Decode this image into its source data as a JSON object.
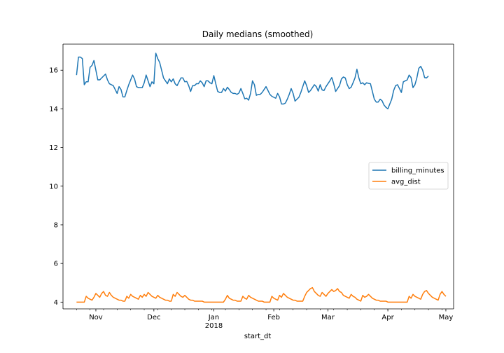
{
  "chart_data": {
    "type": "line",
    "title": "Daily medians (smoothed)",
    "xlabel": "start_dt",
    "ylabel": "",
    "x_start": "2017-10-22",
    "x_end": "2018-04-30",
    "xlim": [
      "2017-10-15",
      "2018-05-05"
    ],
    "ylim": [
      3.65,
      17.35
    ],
    "x_ticks": [
      {
        "date": "2017-11-01",
        "label": "Nov",
        "sublabel": ""
      },
      {
        "date": "2017-12-01",
        "label": "Dec",
        "sublabel": ""
      },
      {
        "date": "2018-01-01",
        "label": "Jan",
        "sublabel": "2018"
      },
      {
        "date": "2018-02-01",
        "label": "Feb",
        "sublabel": ""
      },
      {
        "date": "2018-03-01",
        "label": "Mar",
        "sublabel": ""
      },
      {
        "date": "2018-04-01",
        "label": "Apr",
        "sublabel": ""
      },
      {
        "date": "2018-05-01",
        "label": "May",
        "sublabel": ""
      }
    ],
    "y_ticks": [
      4,
      6,
      8,
      10,
      12,
      14,
      16
    ],
    "legend_position": "center-right",
    "series": [
      {
        "name": "billing_minutes",
        "color": "#1f77b4",
        "values": [
          15.75,
          16.68,
          16.68,
          16.6,
          15.25,
          15.4,
          15.4,
          16.15,
          16.25,
          16.5,
          16.0,
          15.5,
          15.5,
          15.6,
          15.7,
          15.8,
          15.5,
          15.3,
          15.25,
          15.2,
          15.0,
          14.8,
          15.15,
          15.0,
          14.62,
          14.62,
          14.95,
          15.25,
          15.5,
          15.75,
          15.55,
          15.15,
          15.1,
          15.1,
          15.1,
          15.35,
          15.75,
          15.45,
          15.15,
          15.4,
          15.3,
          16.88,
          16.6,
          16.4,
          16.0,
          15.6,
          15.45,
          15.3,
          15.55,
          15.4,
          15.55,
          15.3,
          15.2,
          15.4,
          15.6,
          15.6,
          15.4,
          15.42,
          15.2,
          14.9,
          15.2,
          15.2,
          15.3,
          15.3,
          15.45,
          15.35,
          15.15,
          15.45,
          15.45,
          15.35,
          15.3,
          15.72,
          15.3,
          14.9,
          14.85,
          14.85,
          15.05,
          14.92,
          15.12,
          15.0,
          14.85,
          14.8,
          14.8,
          14.75,
          14.82,
          15.05,
          14.8,
          14.52,
          14.55,
          14.45,
          14.8,
          15.45,
          15.25,
          14.7,
          14.75,
          14.75,
          14.85,
          15.0,
          15.15,
          14.95,
          14.75,
          14.65,
          14.6,
          14.55,
          14.8,
          14.62,
          14.25,
          14.25,
          14.3,
          14.5,
          14.75,
          15.05,
          14.8,
          14.4,
          14.5,
          14.6,
          14.85,
          15.15,
          15.45,
          15.2,
          14.85,
          14.95,
          15.1,
          15.25,
          15.15,
          14.92,
          15.25,
          14.98,
          14.95,
          15.15,
          15.3,
          15.45,
          15.62,
          15.3,
          14.9,
          15.05,
          15.2,
          15.55,
          15.65,
          15.6,
          15.25,
          15.05,
          15.12,
          15.35,
          15.6,
          16.05,
          15.6,
          15.3,
          15.35,
          15.25,
          15.35,
          15.32,
          15.3,
          14.9,
          14.5,
          14.35,
          14.35,
          14.5,
          14.42,
          14.2,
          14.08,
          14.0,
          14.25,
          14.5,
          14.95,
          15.2,
          15.25,
          15.05,
          14.85,
          15.4,
          15.45,
          15.5,
          15.75,
          15.62,
          15.1,
          15.25,
          15.6,
          16.1,
          16.2,
          16.0,
          15.62,
          15.6,
          15.7
        ]
      },
      {
        "name": "avg_dist",
        "color": "#ff7f0e",
        "values": [
          4.0,
          4.0,
          4.0,
          4.0,
          4.0,
          4.3,
          4.2,
          4.15,
          4.1,
          4.25,
          4.45,
          4.35,
          4.25,
          4.45,
          4.55,
          4.35,
          4.3,
          4.5,
          4.35,
          4.25,
          4.2,
          4.15,
          4.1,
          4.1,
          4.05,
          4.05,
          4.3,
          4.2,
          4.4,
          4.3,
          4.25,
          4.2,
          4.15,
          4.35,
          4.25,
          4.4,
          4.3,
          4.5,
          4.4,
          4.3,
          4.25,
          4.2,
          4.35,
          4.25,
          4.2,
          4.15,
          4.1,
          4.1,
          4.05,
          4.05,
          4.4,
          4.3,
          4.5,
          4.4,
          4.3,
          4.25,
          4.35,
          4.25,
          4.15,
          4.1,
          4.1,
          4.05,
          4.05,
          4.05,
          4.05,
          4.05,
          4.0,
          4.0,
          4.0,
          4.0,
          4.0,
          4.0,
          4.0,
          4.0,
          4.0,
          4.0,
          4.0,
          4.15,
          4.35,
          4.2,
          4.15,
          4.1,
          4.1,
          4.05,
          4.05,
          4.05,
          4.3,
          4.2,
          4.15,
          4.35,
          4.25,
          4.2,
          4.15,
          4.1,
          4.05,
          4.05,
          4.05,
          4.0,
          4.0,
          4.0,
          4.0,
          4.3,
          4.2,
          4.15,
          4.1,
          4.35,
          4.25,
          4.45,
          4.35,
          4.25,
          4.2,
          4.15,
          4.1,
          4.1,
          4.05,
          4.05,
          4.05,
          4.05,
          4.3,
          4.5,
          4.6,
          4.7,
          4.75,
          4.55,
          4.45,
          4.35,
          4.3,
          4.5,
          4.4,
          4.3,
          4.45,
          4.55,
          4.65,
          4.55,
          4.6,
          4.7,
          4.55,
          4.5,
          4.35,
          4.3,
          4.25,
          4.2,
          4.4,
          4.3,
          4.25,
          4.15,
          4.1,
          4.05,
          4.35,
          4.25,
          4.3,
          4.4,
          4.3,
          4.2,
          4.15,
          4.1,
          4.1,
          4.05,
          4.05,
          4.05,
          4.05,
          4.0,
          4.0,
          4.0,
          4.0,
          4.0,
          4.0,
          4.0,
          4.0,
          4.0,
          4.0,
          4.0,
          4.3,
          4.2,
          4.4,
          4.3,
          4.25,
          4.2,
          4.15,
          4.4,
          4.55,
          4.6,
          4.45,
          4.35,
          4.25,
          4.2,
          4.15,
          4.1,
          4.4,
          4.55,
          4.4,
          4.3
        ]
      }
    ]
  }
}
